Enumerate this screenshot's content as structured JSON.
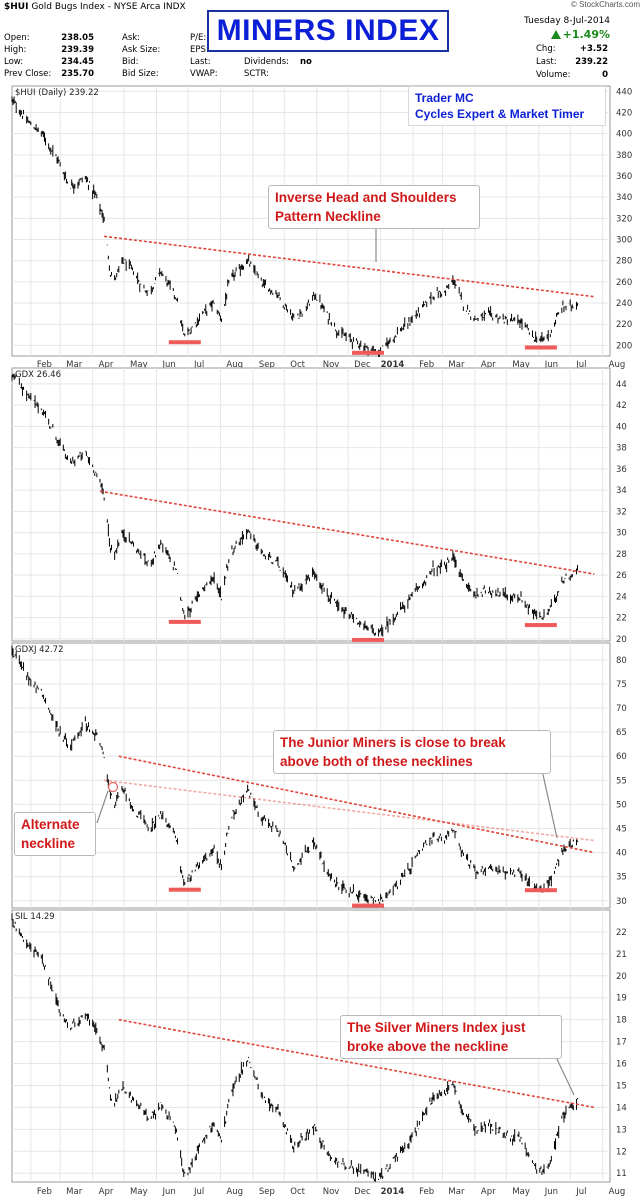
{
  "header": {
    "symbol": "$HUI",
    "name": "Gold Bugs Index - NYSE Arca INDX",
    "open_label": "Open:",
    "open": "238.05",
    "high_label": "High:",
    "high": "239.39",
    "low_label": "Low:",
    "low": "234.45",
    "prev_label": "Prev Close:",
    "prev": "235.70",
    "ask_label": "Ask:",
    "asksize_label": "Ask Size:",
    "bid_label": "Bid:",
    "bidsize_label": "Bid Size:",
    "pe_label": "P/E:",
    "eps_label": "EPS:",
    "last_label2": "Last:",
    "vwap_label": "VWAP:",
    "div_label": "Dividends:",
    "div": "no",
    "sctr_label": "SCTR:",
    "date": "Tuesday  8-Jul-2014",
    "chg_pct": "+1.49%",
    "chg_label": "Chg:",
    "chg": "+3.52",
    "last_label": "Last:",
    "last": "239.22",
    "vol_label": "Volume:",
    "vol": "0",
    "copyright": "© StockCharts.com"
  },
  "title": "MINERS INDEX",
  "trader": {
    "line1": "Trader MC",
    "line2": "Cycles Expert & Market Timer"
  },
  "x_axis_labels": [
    "Feb",
    "Mar",
    "Apr",
    "May",
    "Jun",
    "Jul",
    "Aug",
    "Sep",
    "Oct",
    "Nov",
    "Dec",
    "2014",
    "Feb",
    "Mar",
    "Apr",
    "May",
    "Jun",
    "Jul",
    "Aug"
  ],
  "annotations": {
    "hui_note": "Inverse Head and Shoulders Pattern Neckline",
    "gdxj_note": "The Junior Miners is close to break above both of these necklines",
    "gdxj_alt": "Alternate neckline",
    "sil_note": "The Silver Miners Index just broke above the neckline"
  },
  "colors": {
    "neckline": "#e0453a",
    "marker": "#ef5a5a",
    "title_blue": "#0b1fd6",
    "note_red": "#d01818",
    "up_green": "#1d8a1d"
  },
  "chart_data": [
    {
      "type": "bar",
      "title": "$HUI (Daily) 239.22",
      "legend_label": "$HUI (Daily) 239.22",
      "ylim": [
        190,
        445
      ],
      "yticks": [
        200,
        220,
        240,
        260,
        280,
        300,
        320,
        340,
        360,
        380,
        400,
        420,
        440
      ],
      "grid": true,
      "x_start": "2013-01-14",
      "x_end": "2014-08-08",
      "path": [
        [
          "2013-01-14",
          432
        ],
        [
          "2013-01-28",
          412
        ],
        [
          "2013-02-12",
          400
        ],
        [
          "2013-02-28",
          373
        ],
        [
          "2013-03-10",
          350
        ],
        [
          "2013-03-25",
          358
        ],
        [
          "2013-04-05",
          340
        ],
        [
          "2013-04-12",
          318
        ],
        [
          "2013-04-18",
          268
        ],
        [
          "2013-04-22",
          262
        ],
        [
          "2013-04-30",
          280
        ],
        [
          "2013-05-10",
          270
        ],
        [
          "2013-05-18",
          255
        ],
        [
          "2013-05-25",
          250
        ],
        [
          "2013-06-05",
          270
        ],
        [
          "2013-06-20",
          245
        ],
        [
          "2013-06-27",
          209
        ],
        [
          "2013-07-03",
          214
        ],
        [
          "2013-07-15",
          230
        ],
        [
          "2013-07-25",
          240
        ],
        [
          "2013-08-02",
          225
        ],
        [
          "2013-08-10",
          262
        ],
        [
          "2013-08-27",
          280
        ],
        [
          "2013-09-10",
          258
        ],
        [
          "2013-09-25",
          248
        ],
        [
          "2013-10-10",
          225
        ],
        [
          "2013-10-22",
          235
        ],
        [
          "2013-10-30",
          248
        ],
        [
          "2013-11-10",
          230
        ],
        [
          "2013-11-22",
          212
        ],
        [
          "2013-12-05",
          205
        ],
        [
          "2013-12-18",
          198
        ],
        [
          "2013-12-31",
          193
        ],
        [
          "2014-01-15",
          210
        ],
        [
          "2014-01-27",
          220
        ],
        [
          "2014-02-10",
          235
        ],
        [
          "2014-02-20",
          248
        ],
        [
          "2014-03-03",
          250
        ],
        [
          "2014-03-12",
          262
        ],
        [
          "2014-03-20",
          240
        ],
        [
          "2014-04-01",
          225
        ],
        [
          "2014-04-15",
          229
        ],
        [
          "2014-04-30",
          224
        ],
        [
          "2014-05-15",
          222
        ],
        [
          "2014-05-28",
          207
        ],
        [
          "2014-06-05",
          205
        ],
        [
          "2014-06-12",
          212
        ],
        [
          "2014-06-23",
          236
        ],
        [
          "2014-07-08",
          239
        ]
      ],
      "neckline": [
        [
          "2013-04-12",
          303
        ],
        [
          "2014-07-24",
          246
        ]
      ],
      "markers": [
        {
          "date": "2013-06-28",
          "value": 203
        },
        {
          "date": "2013-12-20",
          "value": 193
        },
        {
          "date": "2014-06-03",
          "value": 198
        }
      ]
    },
    {
      "type": "bar",
      "title": "GDX 26.46",
      "legend_label": "GDX 26.46",
      "ylim": [
        19.8,
        45.5
      ],
      "yticks": [
        20,
        22,
        24,
        26,
        28,
        30,
        32,
        34,
        36,
        38,
        40,
        42,
        44
      ],
      "grid": true,
      "x_start": "2013-01-14",
      "x_end": "2014-08-08",
      "path": [
        [
          "2013-01-14",
          45
        ],
        [
          "2013-01-28",
          43
        ],
        [
          "2013-02-12",
          41.5
        ],
        [
          "2013-02-28",
          38.5
        ],
        [
          "2013-03-10",
          36.5
        ],
        [
          "2013-03-25",
          37.5
        ],
        [
          "2013-04-05",
          35.5
        ],
        [
          "2013-04-12",
          33.5
        ],
        [
          "2013-04-18",
          28.5
        ],
        [
          "2013-04-22",
          28
        ],
        [
          "2013-04-30",
          30
        ],
        [
          "2013-05-10",
          28.8
        ],
        [
          "2013-05-18",
          27.8
        ],
        [
          "2013-05-25",
          27
        ],
        [
          "2013-06-05",
          29
        ],
        [
          "2013-06-20",
          26.5
        ],
        [
          "2013-06-27",
          22.2
        ],
        [
          "2013-07-03",
          22.8
        ],
        [
          "2013-07-15",
          24.8
        ],
        [
          "2013-07-25",
          25.8
        ],
        [
          "2013-08-02",
          24
        ],
        [
          "2013-08-10",
          28
        ],
        [
          "2013-08-27",
          30.2
        ],
        [
          "2013-09-10",
          28
        ],
        [
          "2013-09-25",
          27
        ],
        [
          "2013-10-10",
          24.5
        ],
        [
          "2013-10-22",
          25.5
        ],
        [
          "2013-10-30",
          26.3
        ],
        [
          "2013-11-10",
          24.3
        ],
        [
          "2013-11-22",
          22.8
        ],
        [
          "2013-12-05",
          22
        ],
        [
          "2013-12-18",
          21
        ],
        [
          "2013-12-31",
          20.5
        ],
        [
          "2014-01-15",
          22.2
        ],
        [
          "2014-01-27",
          23.5
        ],
        [
          "2014-02-10",
          25.2
        ],
        [
          "2014-02-20",
          26.5
        ],
        [
          "2014-03-03",
          26.8
        ],
        [
          "2014-03-12",
          27.8
        ],
        [
          "2014-03-20",
          25.5
        ],
        [
          "2014-04-01",
          24.2
        ],
        [
          "2014-04-15",
          24.6
        ],
        [
          "2014-04-30",
          24.1
        ],
        [
          "2014-05-15",
          23.8
        ],
        [
          "2014-05-28",
          22.3
        ],
        [
          "2014-06-05",
          22
        ],
        [
          "2014-06-12",
          22.8
        ],
        [
          "2014-06-23",
          25.5
        ],
        [
          "2014-07-08",
          26.4
        ]
      ],
      "neckline": [
        [
          "2013-04-08",
          33.9
        ],
        [
          "2014-07-24",
          26.1
        ]
      ],
      "markers": [
        {
          "date": "2013-06-28",
          "value": 21.6
        },
        {
          "date": "2013-12-20",
          "value": 19.9
        },
        {
          "date": "2014-06-03",
          "value": 21.3
        }
      ]
    },
    {
      "type": "bar",
      "title": "GDXJ 42.72",
      "legend_label": "GDXJ 42.72",
      "ylim": [
        28.5,
        83.5
      ],
      "yticks": [
        30,
        35,
        40,
        45,
        50,
        55,
        60,
        65,
        70,
        75,
        80
      ],
      "grid": true,
      "x_start": "2013-01-14",
      "x_end": "2014-08-08",
      "path": [
        [
          "2013-01-14",
          82
        ],
        [
          "2013-01-28",
          77
        ],
        [
          "2013-02-12",
          73
        ],
        [
          "2013-02-28",
          65
        ],
        [
          "2013-03-10",
          62
        ],
        [
          "2013-03-25",
          67
        ],
        [
          "2013-04-05",
          64
        ],
        [
          "2013-04-12",
          60
        ],
        [
          "2013-04-18",
          52
        ],
        [
          "2013-04-22",
          50
        ],
        [
          "2013-04-30",
          53
        ],
        [
          "2013-05-10",
          49
        ],
        [
          "2013-05-18",
          47
        ],
        [
          "2013-05-25",
          45
        ],
        [
          "2013-06-05",
          48
        ],
        [
          "2013-06-20",
          43
        ],
        [
          "2013-06-27",
          33.5
        ],
        [
          "2013-07-03",
          35
        ],
        [
          "2013-07-15",
          38
        ],
        [
          "2013-07-25",
          41
        ],
        [
          "2013-08-02",
          37
        ],
        [
          "2013-08-10",
          47
        ],
        [
          "2013-08-27",
          53
        ],
        [
          "2013-09-10",
          47
        ],
        [
          "2013-09-25",
          45
        ],
        [
          "2013-10-10",
          37
        ],
        [
          "2013-10-22",
          40
        ],
        [
          "2013-10-30",
          42
        ],
        [
          "2013-11-10",
          36
        ],
        [
          "2013-11-22",
          33
        ],
        [
          "2013-12-05",
          32
        ],
        [
          "2013-12-18",
          30.5
        ],
        [
          "2013-12-31",
          30
        ],
        [
          "2014-01-15",
          33
        ],
        [
          "2014-01-27",
          36
        ],
        [
          "2014-02-10",
          41
        ],
        [
          "2014-02-20",
          43
        ],
        [
          "2014-03-03",
          43
        ],
        [
          "2014-03-12",
          45
        ],
        [
          "2014-03-20",
          40
        ],
        [
          "2014-04-01",
          36
        ],
        [
          "2014-04-15",
          37
        ],
        [
          "2014-04-30",
          36
        ],
        [
          "2014-05-15",
          35.5
        ],
        [
          "2014-05-28",
          33
        ],
        [
          "2014-06-05",
          32.5
        ],
        [
          "2014-06-12",
          34
        ],
        [
          "2014-06-23",
          40
        ],
        [
          "2014-07-08",
          42.7
        ]
      ],
      "neckline": [
        [
          "2013-04-26",
          60
        ],
        [
          "2014-07-24",
          40
        ]
      ],
      "alt_neckline": [
        [
          "2013-04-12",
          55
        ],
        [
          "2014-07-24",
          42.5
        ]
      ],
      "markers": [
        {
          "date": "2013-06-28",
          "value": 32.3
        },
        {
          "date": "2013-12-20",
          "value": 29
        },
        {
          "date": "2014-06-03",
          "value": 32.2
        }
      ]
    },
    {
      "type": "bar",
      "title": "SIL 14.29",
      "legend_label": "SIL 14.29",
      "ylim": [
        10.6,
        23
      ],
      "yticks": [
        11,
        12,
        13,
        14,
        15,
        16,
        17,
        18,
        19,
        20,
        21,
        22
      ],
      "grid": true,
      "x_start": "2013-01-14",
      "x_end": "2014-08-08",
      "path": [
        [
          "2013-01-14",
          22.5
        ],
        [
          "2013-01-28",
          21.5
        ],
        [
          "2013-02-12",
          20.8
        ],
        [
          "2013-02-28",
          18.5
        ],
        [
          "2013-03-10",
          17.6
        ],
        [
          "2013-03-25",
          18.2
        ],
        [
          "2013-04-05",
          17.5
        ],
        [
          "2013-04-12",
          16.7
        ],
        [
          "2013-04-18",
          14.5
        ],
        [
          "2013-04-22",
          14.2
        ],
        [
          "2013-04-30",
          14.9
        ],
        [
          "2013-05-10",
          14.3
        ],
        [
          "2013-05-18",
          13.9
        ],
        [
          "2013-05-25",
          13.5
        ],
        [
          "2013-06-05",
          14.1
        ],
        [
          "2013-06-20",
          13
        ],
        [
          "2013-06-27",
          10.9
        ],
        [
          "2013-07-03",
          11.3
        ],
        [
          "2013-07-15",
          12.5
        ],
        [
          "2013-07-25",
          13.2
        ],
        [
          "2013-08-02",
          12.5
        ],
        [
          "2013-08-10",
          14.5
        ],
        [
          "2013-08-27",
          16.3
        ],
        [
          "2013-09-10",
          14.5
        ],
        [
          "2013-09-25",
          13.8
        ],
        [
          "2013-10-10",
          12.2
        ],
        [
          "2013-10-22",
          12.7
        ],
        [
          "2013-10-30",
          13.2
        ],
        [
          "2013-11-10",
          12
        ],
        [
          "2013-11-22",
          11.5
        ],
        [
          "2013-12-05",
          11.3
        ],
        [
          "2013-12-18",
          11
        ],
        [
          "2013-12-31",
          10.8
        ],
        [
          "2014-01-15",
          11.7
        ],
        [
          "2014-01-27",
          12.3
        ],
        [
          "2014-02-10",
          13.5
        ],
        [
          "2014-02-20",
          14.5
        ],
        [
          "2014-03-03",
          14.6
        ],
        [
          "2014-03-12",
          15
        ],
        [
          "2014-03-20",
          13.8
        ],
        [
          "2014-04-01",
          13
        ],
        [
          "2014-04-15",
          13.2
        ],
        [
          "2014-04-30",
          12.8
        ],
        [
          "2014-05-15",
          12.5
        ],
        [
          "2014-05-28",
          11.3
        ],
        [
          "2014-06-05",
          11.1
        ],
        [
          "2014-06-12",
          11.6
        ],
        [
          "2014-06-23",
          13.5
        ],
        [
          "2014-07-08",
          14.3
        ]
      ],
      "neckline": [
        [
          "2013-04-26",
          18
        ],
        [
          "2014-07-24",
          14
        ]
      ],
      "markers": []
    }
  ]
}
